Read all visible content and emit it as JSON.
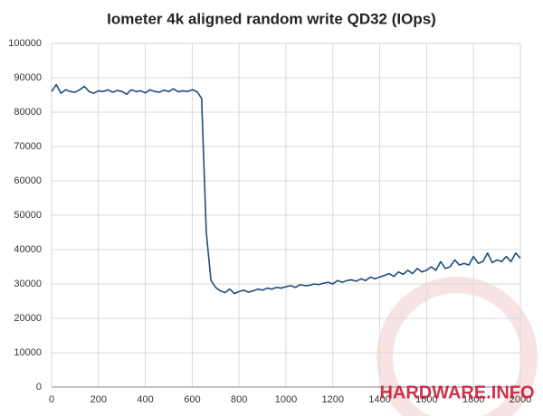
{
  "chart_data": {
    "type": "line",
    "title": "Iometer 4k aligned random write QD32 (IOps)",
    "watermark": "HARDWARE.INFO",
    "x": [
      0,
      20,
      40,
      60,
      80,
      100,
      120,
      140,
      160,
      180,
      200,
      220,
      240,
      260,
      280,
      300,
      320,
      340,
      360,
      380,
      400,
      420,
      440,
      460,
      480,
      500,
      520,
      540,
      560,
      580,
      600,
      620,
      640,
      660,
      680,
      700,
      720,
      740,
      760,
      780,
      800,
      820,
      840,
      860,
      880,
      900,
      920,
      940,
      960,
      980,
      1000,
      1020,
      1040,
      1060,
      1080,
      1100,
      1120,
      1140,
      1160,
      1180,
      1200,
      1220,
      1240,
      1260,
      1280,
      1300,
      1320,
      1340,
      1360,
      1380,
      1400,
      1420,
      1440,
      1460,
      1480,
      1500,
      1520,
      1540,
      1560,
      1580,
      1600,
      1620,
      1640,
      1660,
      1680,
      1700,
      1720,
      1740,
      1760,
      1780,
      1800,
      1820,
      1840,
      1860,
      1880,
      1900,
      1920,
      1940,
      1960,
      1980,
      2000
    ],
    "values": [
      86000,
      88000,
      85500,
      86500,
      86000,
      85800,
      86500,
      87500,
      86000,
      85500,
      86200,
      86000,
      86500,
      85800,
      86300,
      86000,
      85200,
      86500,
      86000,
      86200,
      85600,
      86500,
      86000,
      85800,
      86400,
      86000,
      86800,
      85900,
      86200,
      86000,
      86500,
      86000,
      84000,
      45000,
      31000,
      29000,
      28000,
      27500,
      28500,
      27200,
      27800,
      28200,
      27600,
      28000,
      28500,
      28200,
      28800,
      28500,
      29000,
      28800,
      29200,
      29500,
      29000,
      29800,
      29500,
      29600,
      30000,
      29800,
      30200,
      30500,
      30000,
      31000,
      30500,
      31000,
      31200,
      30800,
      31500,
      31000,
      32000,
      31500,
      32000,
      32500,
      33000,
      32200,
      33500,
      32800,
      34000,
      33000,
      34500,
      33500,
      34000,
      35000,
      34000,
      36500,
      34500,
      35000,
      37000,
      35500,
      36000,
      35500,
      38000,
      36000,
      36500,
      39000,
      36200,
      37000,
      36500,
      38000,
      36500,
      39000,
      37500
    ],
    "color": "#1f4e79",
    "xlim": [
      0,
      2000
    ],
    "xticks": [
      0,
      200,
      400,
      600,
      800,
      1000,
      1200,
      1400,
      1600,
      1800,
      2000
    ],
    "ylim": [
      0,
      100000
    ],
    "yticks": [
      0,
      10000,
      20000,
      30000,
      40000,
      50000,
      60000,
      70000,
      80000,
      90000,
      100000
    ],
    "grid": true
  }
}
